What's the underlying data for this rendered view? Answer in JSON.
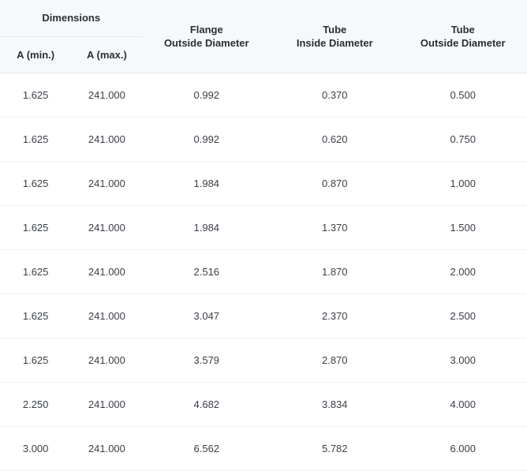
{
  "type": "table",
  "background_color": "#ffffff",
  "header_background": "#f7f8f9",
  "border_color": "#e5e7ea",
  "row_border_color": "#eef0f2",
  "text_color": "#3a3f46",
  "header_text_color": "#2a2f36",
  "font_size_pt": 10,
  "header_font_weight": 600,
  "columns": {
    "group_header": "Dimensions",
    "a_min": "A (min.)",
    "a_max": "A (max.)",
    "flange_od_line1": "Flange",
    "flange_od_line2": "Outside Diameter",
    "tube_id_line1": "Tube",
    "tube_id_line2": "Inside Diameter",
    "tube_od_line1": "Tube",
    "tube_od_line2": "Outside Diameter"
  },
  "column_widths_pct": [
    13.5,
    13.5,
    24.3,
    24.3,
    24.3
  ],
  "rows": [
    {
      "a_min": "1.625",
      "a_max": "241.000",
      "flange_od": "0.992",
      "tube_id": "0.370",
      "tube_od": "0.500"
    },
    {
      "a_min": "1.625",
      "a_max": "241.000",
      "flange_od": "0.992",
      "tube_id": "0.620",
      "tube_od": "0.750"
    },
    {
      "a_min": "1.625",
      "a_max": "241.000",
      "flange_od": "1.984",
      "tube_id": "0.870",
      "tube_od": "1.000"
    },
    {
      "a_min": "1.625",
      "a_max": "241.000",
      "flange_od": "1.984",
      "tube_id": "1.370",
      "tube_od": "1.500"
    },
    {
      "a_min": "1.625",
      "a_max": "241.000",
      "flange_od": "2.516",
      "tube_id": "1.870",
      "tube_od": "2.000"
    },
    {
      "a_min": "1.625",
      "a_max": "241.000",
      "flange_od": "3.047",
      "tube_id": "2.370",
      "tube_od": "2.500"
    },
    {
      "a_min": "1.625",
      "a_max": "241.000",
      "flange_od": "3.579",
      "tube_id": "2.870",
      "tube_od": "3.000"
    },
    {
      "a_min": "2.250",
      "a_max": "241.000",
      "flange_od": "4.682",
      "tube_id": "3.834",
      "tube_od": "4.000"
    },
    {
      "a_min": "3.000",
      "a_max": "241.000",
      "flange_od": "6.562",
      "tube_id": "5.782",
      "tube_od": "6.000"
    }
  ]
}
